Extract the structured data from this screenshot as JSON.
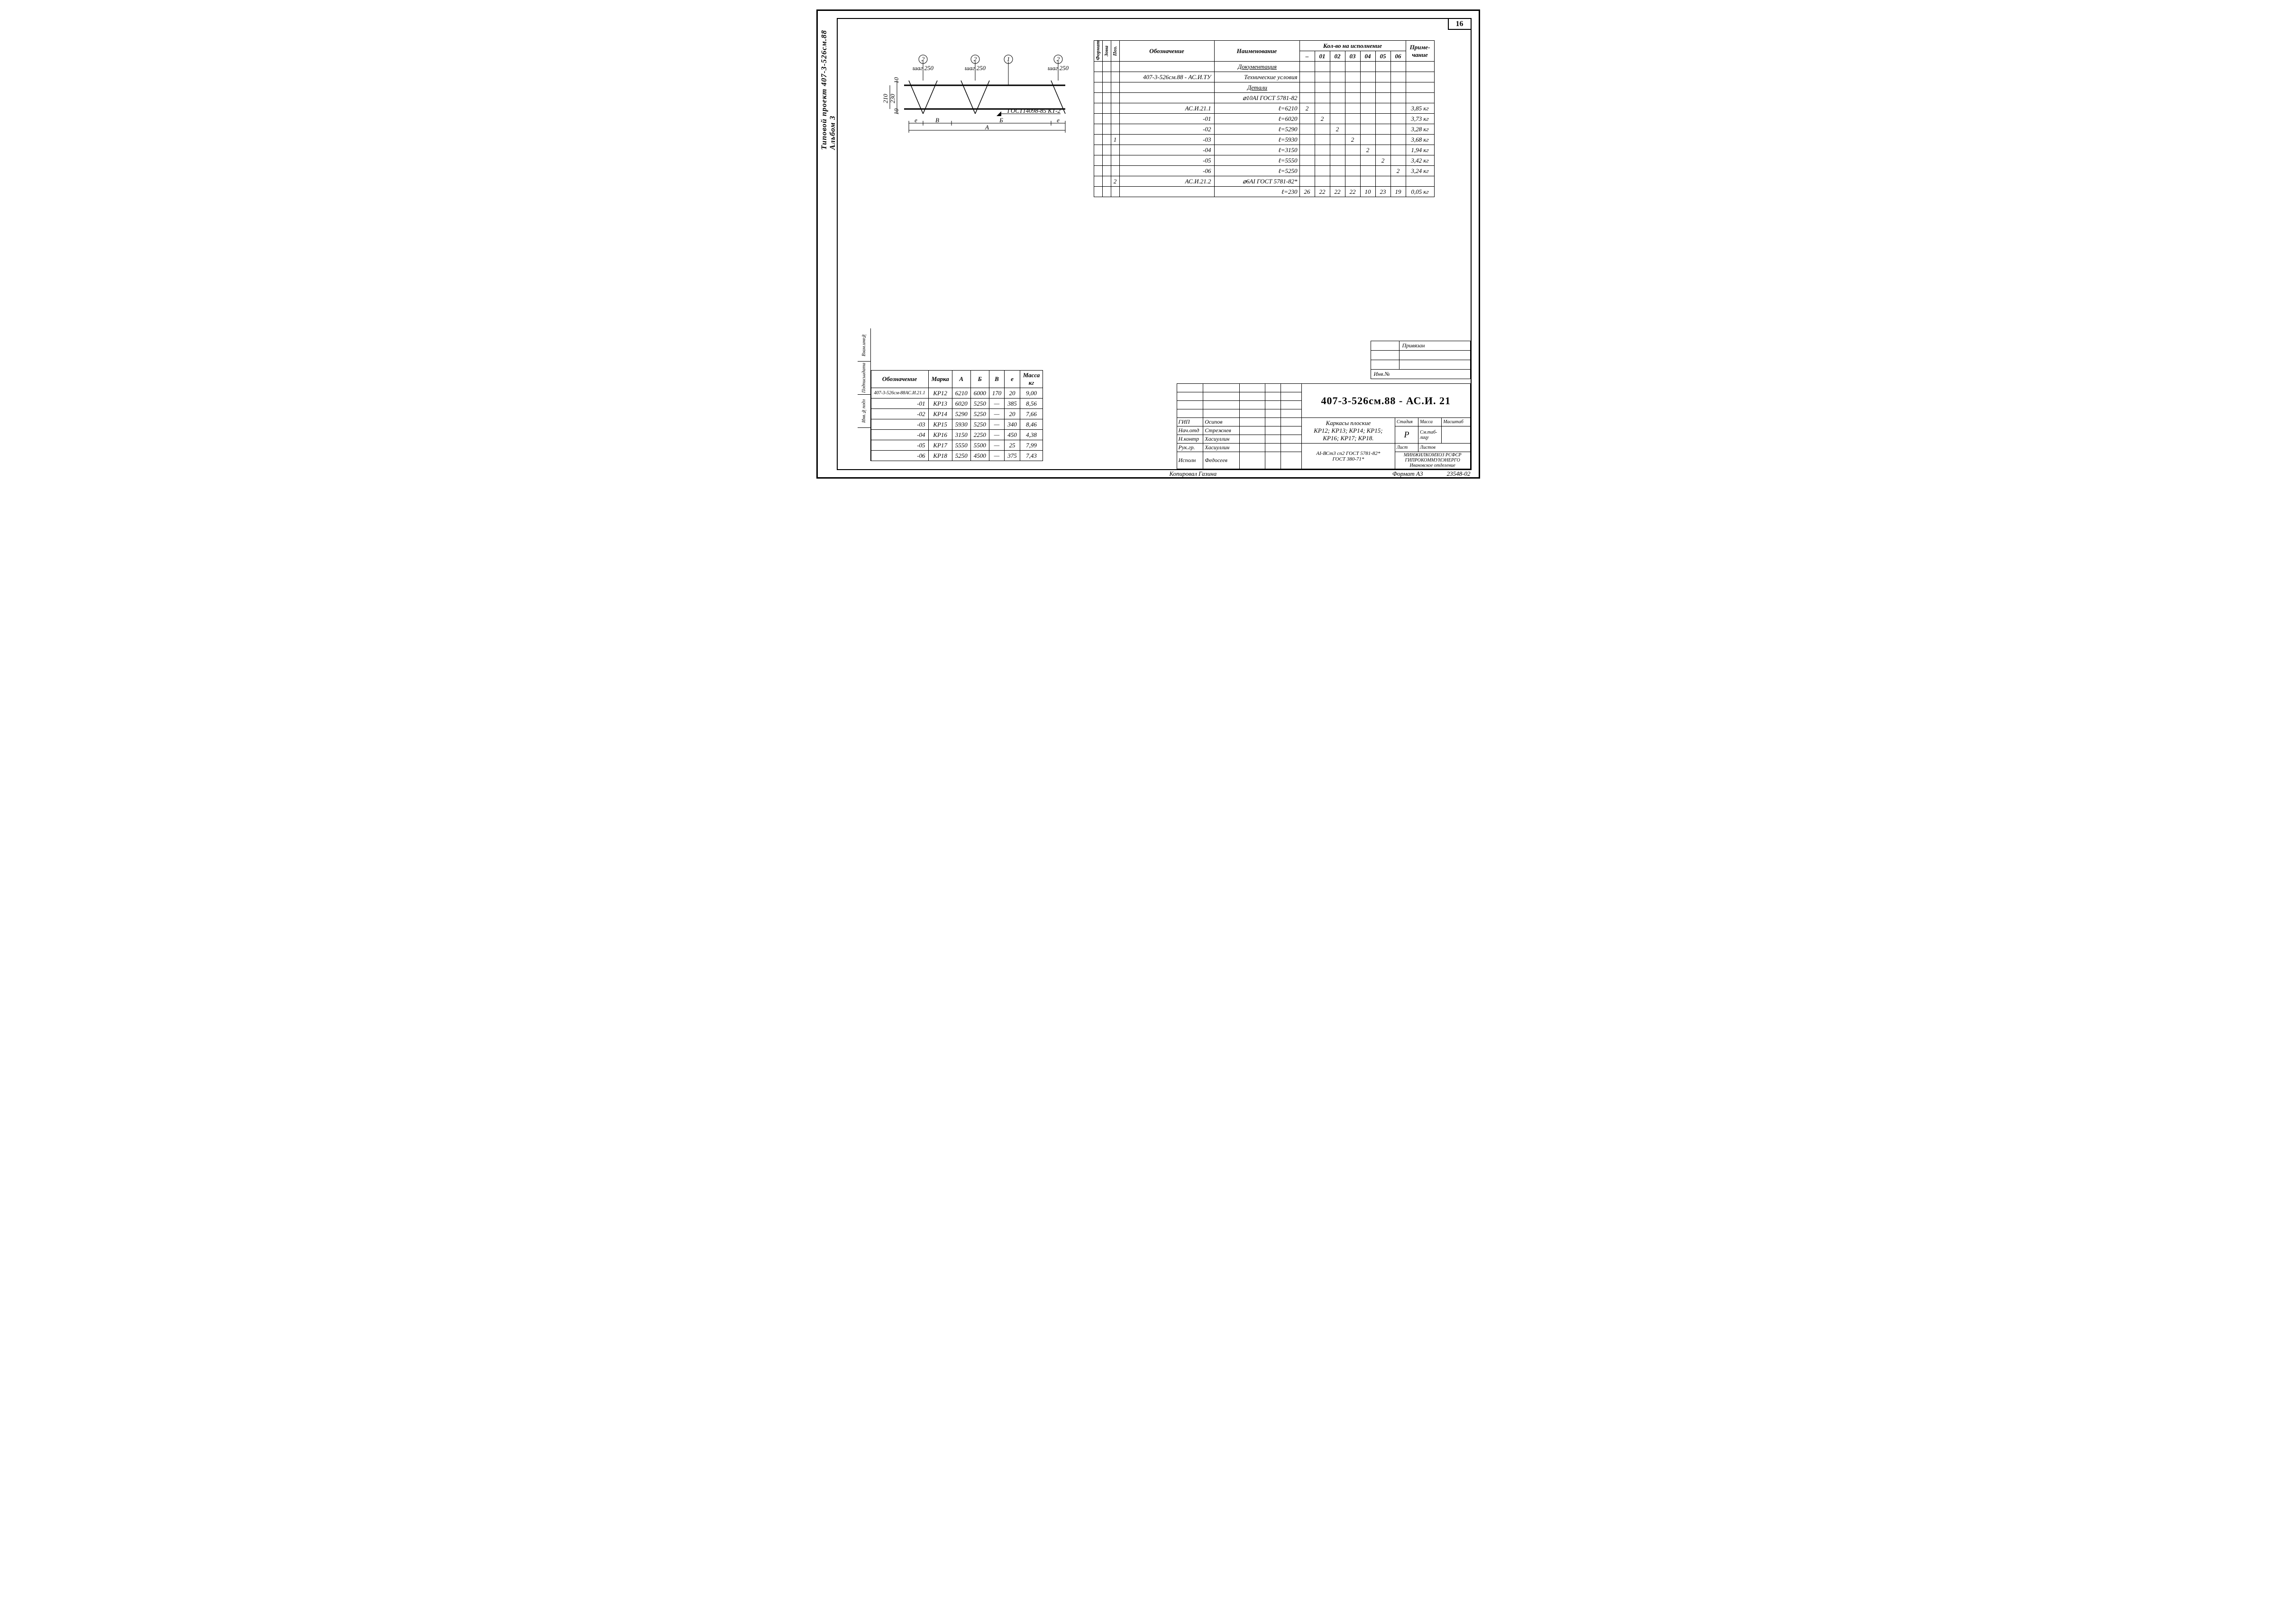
{
  "page_number": "16",
  "side_label_1": "Типовой проект 407-3-526см.88",
  "side_label_2": "Альбом 3",
  "side_stamps": [
    "Инв.№подл",
    "Подписьидата",
    "Взам.инв№"
  ],
  "drawing": {
    "label_2": "2",
    "label_1": "1",
    "step": "шаг 250",
    "dim_230": "230",
    "dim_210": "210",
    "dim_10a": "10",
    "dim_10b": "10",
    "gost_weld": "ГОСТ14098-85 КТ-2",
    "dim_e": "e",
    "dim_B": "В",
    "dim_Б": "Б",
    "dim_A": "А"
  },
  "spec": {
    "headers": {
      "format": "Формат",
      "zone": "Зона",
      "pos": "Поз.",
      "desig": "Обозначение",
      "name": "Наименование",
      "qty": "Кол-во на исполнение",
      "note": "Приме-\nчание",
      "variants": [
        "–",
        "01",
        "02",
        "03",
        "04",
        "05",
        "06"
      ]
    },
    "rows": [
      {
        "desig": "",
        "name": "Документация",
        "q": [
          "",
          "",
          "",
          "",
          "",
          "",
          ""
        ],
        "note": "",
        "u": true
      },
      {
        "desig": "407-3-526см.88 - АС.И.ТУ",
        "name": "Технические условия",
        "q": [
          "",
          "",
          "",
          "",
          "",
          "",
          ""
        ],
        "note": ""
      },
      {
        "desig": "",
        "name": "Детали",
        "q": [
          "",
          "",
          "",
          "",
          "",
          "",
          ""
        ],
        "note": "",
        "u": true
      },
      {
        "desig": "",
        "name": "⌀10АI ГОСТ 5781-82",
        "q": [
          "",
          "",
          "",
          "",
          "",
          "",
          ""
        ],
        "note": ""
      },
      {
        "pos": "",
        "desig": "АС.И.21.1",
        "name": "ℓ=6210",
        "q": [
          "2",
          "",
          "",
          "",
          "",
          "",
          ""
        ],
        "note": "3,85 кг"
      },
      {
        "pos": "",
        "desig": "-01",
        "name": "ℓ=6020",
        "q": [
          "",
          "2",
          "",
          "",
          "",
          "",
          ""
        ],
        "note": "3,73 кг"
      },
      {
        "pos": "",
        "desig": "-02",
        "name": "ℓ=5290",
        "q": [
          "",
          "",
          "2",
          "",
          "",
          "",
          ""
        ],
        "note": "3,28 кг"
      },
      {
        "pos": "1",
        "desig": "-03",
        "name": "ℓ=5930",
        "q": [
          "",
          "",
          "",
          "2",
          "",
          "",
          ""
        ],
        "note": "3,68 кг"
      },
      {
        "pos": "",
        "desig": "-04",
        "name": "ℓ=3150",
        "q": [
          "",
          "",
          "",
          "",
          "2",
          "",
          ""
        ],
        "note": "1,94 кг"
      },
      {
        "pos": "",
        "desig": "-05",
        "name": "ℓ=5550",
        "q": [
          "",
          "",
          "",
          "",
          "",
          "2",
          ""
        ],
        "note": "3,42 кг"
      },
      {
        "pos": "",
        "desig": "-06",
        "name": "ℓ=5250",
        "q": [
          "",
          "",
          "",
          "",
          "",
          "",
          "2"
        ],
        "note": "3,24 кг"
      },
      {
        "pos": "2",
        "desig": "АС.И.21.2",
        "name": "⌀6АI ГОСТ 5781-82*",
        "q": [
          "",
          "",
          "",
          "",
          "",
          "",
          ""
        ],
        "note": ""
      },
      {
        "pos": "",
        "desig": "",
        "name": "ℓ=230",
        "q": [
          "26",
          "22",
          "22",
          "22",
          "10",
          "23",
          "19"
        ],
        "note": "0,05 кг"
      }
    ]
  },
  "dims": {
    "headers": [
      "Обозначение",
      "Марка",
      "А",
      "Б",
      "В",
      "e",
      "Масса\nкг"
    ],
    "rows": [
      [
        "407-3-526см-88АС.И.21.1",
        "КР12",
        "6210",
        "6000",
        "170",
        "20",
        "9,00"
      ],
      [
        "-01",
        "КР13",
        "6020",
        "5250",
        "—",
        "385",
        "8,56"
      ],
      [
        "-02",
        "КР14",
        "5290",
        "5250",
        "—",
        "20",
        "7,66"
      ],
      [
        "-03",
        "КР15",
        "5930",
        "5250",
        "—",
        "340",
        "8,46"
      ],
      [
        "-04",
        "КР16",
        "3150",
        "2250",
        "—",
        "450",
        "4,38"
      ],
      [
        "-05",
        "КР17",
        "5550",
        "5500",
        "—",
        "25",
        "7,99"
      ],
      [
        "-06",
        "КР18",
        "5250",
        "4500",
        "—",
        "375",
        "7,43"
      ]
    ]
  },
  "bind": {
    "label": "Привязан",
    "inv": "Инв.№"
  },
  "title_block": {
    "code": "407-3-526см.88 - АС.И. 21",
    "title": "Каркасы плоские\nКР12; КР13; КР14; КР15;\nКР16; КР17; КР18.",
    "material": "АI-ВСт3 сп2 ГОСТ 5781-82*\nГОСТ 380-71*",
    "roles": [
      [
        "",
        ""
      ],
      [
        "",
        ""
      ],
      [
        "",
        ""
      ],
      [
        "",
        ""
      ],
      [
        "ГИП",
        "Осипов"
      ],
      [
        "Нач.отд",
        "Стрежнев"
      ],
      [
        "Н.контр",
        "Хасиуллин"
      ],
      [
        "Рук.гр.",
        "Хасиуллин"
      ],
      [
        "Исполн",
        "Федосеев"
      ]
    ],
    "stage_hdr": [
      "Стадия",
      "Масса",
      "Масштаб"
    ],
    "stage": "Р",
    "see": "См.таб-\nлицу",
    "sheet_hdr": [
      "Лист",
      "Листов"
    ],
    "sheet": "",
    "sheets": "34",
    "org": "МИНЖИЛКОМХОЗ РСФСР\nГИПРОКОММУНЭНЕРГО\nИвановское отделение"
  },
  "copied_by": "Копировал Газина",
  "format": "Формат А3",
  "bottom_code": "23548-02"
}
